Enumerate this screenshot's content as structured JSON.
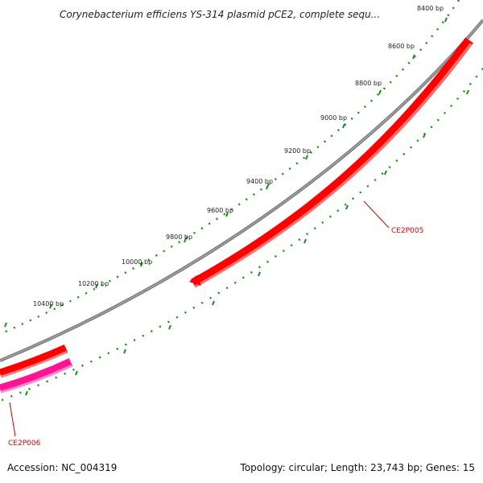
{
  "title": "Corynebacterium efficiens YS-314 plasmid pCE2, complete sequ...",
  "footer": {
    "accession": "Accession: NC_004319",
    "summary": "Topology: circular; Length: 23,743 bp; Genes: 15"
  },
  "ruler": {
    "labels": [
      "8400 bp",
      "8600 bp",
      "8800 bp",
      "9000 bp",
      "9200 bp",
      "9400 bp",
      "9600 bp",
      "9800 bp",
      "10000 bp",
      "10200 bp",
      "10400 bp"
    ]
  },
  "genes": [
    {
      "name": "CE2P005",
      "color": "#ff0000"
    },
    {
      "name": "CE2P006",
      "color": "#ff1493"
    }
  ],
  "colors": {
    "backbone": "#808080",
    "ticks": "#1a8a1a",
    "gene_forward": "#ff0000",
    "gene_reverse": "#ff1493",
    "label_red": "#cc0000"
  }
}
